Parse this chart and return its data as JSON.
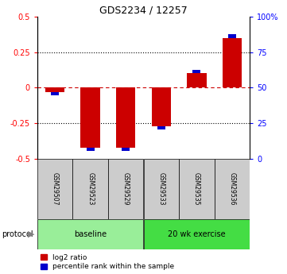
{
  "title": "GDS2234 / 12257",
  "samples": [
    "GSM29507",
    "GSM29523",
    "GSM29529",
    "GSM29533",
    "GSM29535",
    "GSM29536"
  ],
  "log2_ratio": [
    -0.03,
    -0.42,
    -0.42,
    -0.27,
    0.1,
    0.35
  ],
  "percentile_rank": [
    47,
    13,
    13,
    25,
    57,
    85
  ],
  "groups": [
    {
      "label": "baseline",
      "start": 0,
      "end": 3,
      "color": "#99ee99"
    },
    {
      "label": "20 wk exercise",
      "start": 3,
      "end": 6,
      "color": "#44dd44"
    }
  ],
  "ylim_left": [
    -0.5,
    0.5
  ],
  "ylim_right": [
    0,
    100
  ],
  "yticks_left": [
    -0.5,
    -0.25,
    0,
    0.25,
    0.5
  ],
  "yticks_right": [
    0,
    25,
    50,
    75,
    100
  ],
  "bar_color_red": "#cc0000",
  "bar_color_blue": "#0000cc",
  "zero_line_color": "#cc0000",
  "grid_color": "#000000",
  "label_log2": "log2 ratio",
  "label_pct": "percentile rank within the sample",
  "protocol_label": "protocol",
  "bar_width": 0.55,
  "blue_bar_width": 0.22,
  "blue_bar_height": 0.025
}
